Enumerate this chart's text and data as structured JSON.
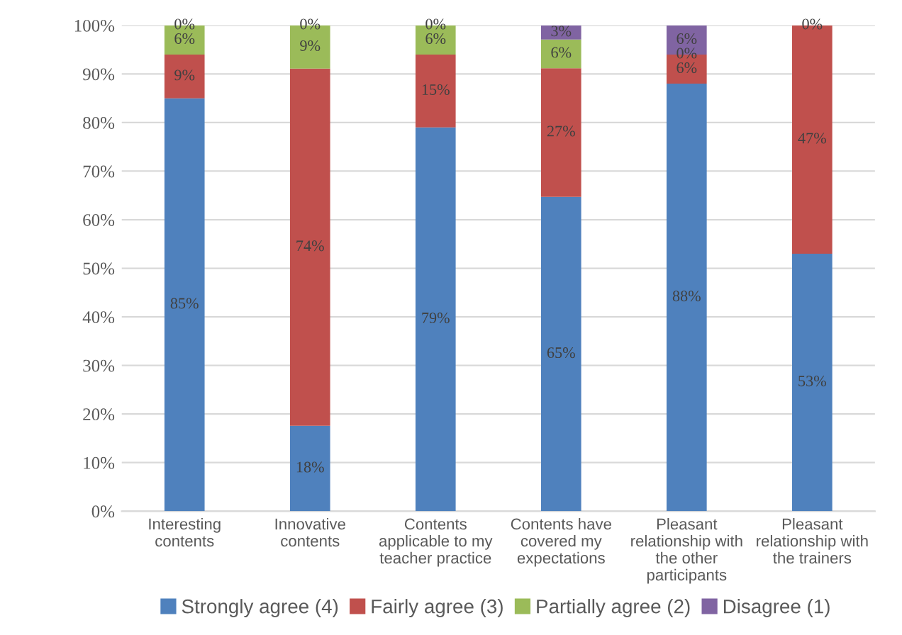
{
  "chart_data": {
    "type": "bar",
    "stacked": true,
    "categories": [
      "Interesting\ncontents",
      "Innovative\ncontents",
      "Contents\napplicable to my\nteacher practice",
      "Contents have\ncovered my\nexpectations",
      "Pleasant\nrelationship with\nthe other\nparticipants",
      "Pleasant\nrelationship with\nthe trainers"
    ],
    "series": [
      {
        "name": "Strongly agree (4)",
        "color": "#4f81bd",
        "values": [
          85,
          17.6,
          79,
          64.7,
          88,
          53
        ],
        "value_labels": [
          "85%",
          "18%",
          "79%",
          "65%",
          "88%",
          "53%"
        ]
      },
      {
        "name": "Fairly agree (3)",
        "color": "#c0504d",
        "values": [
          9,
          73.5,
          15,
          26.5,
          6,
          47
        ],
        "value_labels": [
          "9%",
          "74%",
          "15%",
          "27%",
          "6%",
          "47%"
        ]
      },
      {
        "name": "Partially agree (2)",
        "color": "#9bbb59",
        "values": [
          6,
          8.9,
          6,
          5.9,
          0,
          0
        ],
        "value_labels": [
          "6%",
          "9%",
          "6%",
          "6%",
          "0%",
          "0%"
        ]
      },
      {
        "name": "Disagree (1)",
        "color": "#8064a2",
        "values": [
          0,
          0,
          0,
          2.9,
          6,
          0
        ],
        "value_labels": [
          "0%",
          "0%",
          "0%",
          "3%",
          "6%",
          null
        ]
      }
    ],
    "ylim": [
      0,
      100
    ],
    "yticks": [
      {
        "value": 0,
        "label": "0%"
      },
      {
        "value": 10,
        "label": "10%"
      },
      {
        "value": 20,
        "label": "20%"
      },
      {
        "value": 30,
        "label": "30%"
      },
      {
        "value": 40,
        "label": "40%"
      },
      {
        "value": 50,
        "label": "50%"
      },
      {
        "value": 60,
        "label": "60%"
      },
      {
        "value": 70,
        "label": "70%"
      },
      {
        "value": 80,
        "label": "80%"
      },
      {
        "value": 90,
        "label": "90%"
      },
      {
        "value": 100,
        "label": "100%"
      }
    ],
    "grid": "y",
    "legend": "bottom"
  }
}
